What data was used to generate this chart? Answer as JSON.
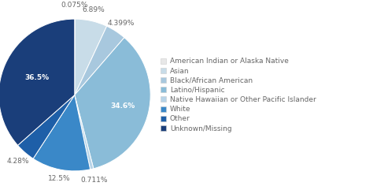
{
  "labels": [
    "American Indian or Alaska Native",
    "Asian",
    "Black/African American",
    "Latino/Hispanic",
    "Native Hawaiian or Other Pacific Islander",
    "White",
    "Other",
    "Unknown/Missing"
  ],
  "values": [
    0.075,
    6.89,
    4.399,
    34.6,
    0.711,
    12.5,
    4.28,
    36.5
  ],
  "colors_by_label": {
    "American Indian or Alaska Native": "#e8e8e8",
    "Asian": "#c8dce8",
    "Black/African American": "#a8c8de",
    "Latino/Hispanic": "#8abcd8",
    "Native Hawaiian or Other Pacific Islander": "#b8d4e8",
    "White": "#3a88c8",
    "Other": "#1e5fa8",
    "Unknown/Missing": "#1a3e7a"
  },
  "background_color": "#ffffff",
  "text_color": "#666666",
  "legend_fontsize": 6.5,
  "autopct_fontsize": 6.5,
  "pie_order": [
    0,
    1,
    2,
    3,
    4,
    5,
    6,
    7
  ],
  "pie_labels_inside": [
    6
  ],
  "pie_labels_inside_color": "white",
  "startangle": 90
}
